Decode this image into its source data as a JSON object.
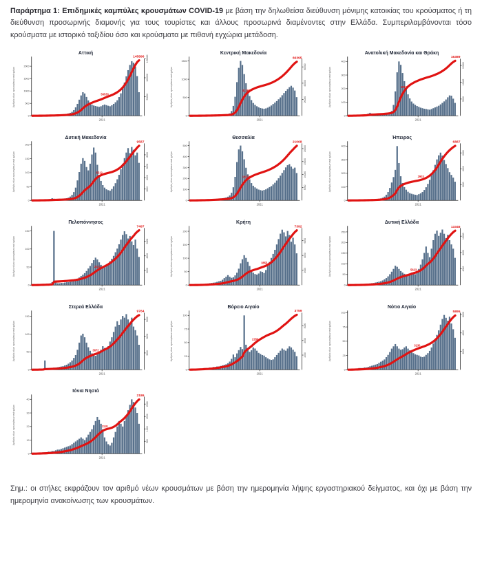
{
  "header": {
    "prefix": "Παράρτημα 1:",
    "bold_title": "Επιδημικές καμπύλες κρουσμάτων COVID-19",
    "body": "με βάση την δηλωθείσα διεύθυνση μόνιμης κατοικίας του κρούσματος ή τη διεύθυνση προσωρινής διαμονής για τους τουρίστες και άλλους προσωρινά διαμένοντες στην Ελλάδα. Συμπεριλαμβάνονται τόσο κρούσματα με ιστορικό ταξιδίου όσο και κρούσματα με πιθανή εγχώρια μετάδοση."
  },
  "footnote": "Σημ.:  οι στήλες εκφράζουν τον αριθμό νέων κρουσμάτων με βάση την ημερομηνία λήψης εργαστηριακού δείγματος, και όχι με βάση την ημερομηνία ανακοίνωσης των κρουσμάτων.",
  "meta": {
    "ylabel": "Αριθμός νέων κρουσμάτων ανά ημέρα",
    "colors": {
      "bar": "#57708b",
      "curve": "#e01312",
      "axis": "#2b2b2b",
      "title": "#1c2333",
      "tick_text": "#4a4a4a"
    },
    "rows": [
      [
        0,
        1,
        2
      ],
      [
        3,
        4,
        5
      ],
      [
        6,
        7,
        8
      ],
      [
        9,
        10,
        11
      ],
      [
        12
      ]
    ]
  },
  "chart_data": [
    {
      "type": "bar+line",
      "title": "Αττική",
      "xtick": "2021",
      "xtick_frac": 0.65,
      "left_ticks": [
        0,
        500,
        1000,
        1500,
        2000
      ],
      "left_max": 2300,
      "right_ticks": [
        50000,
        100000,
        150000
      ],
      "right_max": 150000,
      "total_label": "145896",
      "mid_label": "56530",
      "mid_frac": 0.66,
      "daily_bars": [
        8,
        9,
        10,
        11,
        12,
        13,
        14,
        15,
        16,
        18,
        20,
        22,
        25,
        28,
        32,
        36,
        42,
        50,
        60,
        75,
        95,
        120,
        160,
        230,
        340,
        480,
        650,
        820,
        950,
        900,
        760,
        620,
        510,
        450,
        415,
        395,
        375,
        360,
        385,
        425,
        455,
        430,
        405,
        385,
        425,
        480,
        545,
        625,
        755,
        905,
        1100,
        1340,
        1590,
        1840,
        2050,
        2200,
        2140,
        1980,
        1600,
        950
      ]
    },
    {
      "type": "bar+line",
      "title": "Κεντρική Μακεδονία",
      "xtick": "2021",
      "xtick_frac": 0.65,
      "left_ticks": [
        0,
        500,
        1000,
        1500
      ],
      "left_max": 1560,
      "right_ticks": [
        20000,
        40000,
        60000
      ],
      "right_max": 70000,
      "total_label": "66395",
      "mid_label": "41260",
      "mid_frac": 0.52,
      "daily_bars": [
        4,
        5,
        5,
        6,
        6,
        7,
        8,
        8,
        9,
        10,
        11,
        12,
        13,
        14,
        15,
        16,
        18,
        20,
        23,
        26,
        30,
        42,
        65,
        130,
        270,
        520,
        920,
        1310,
        1500,
        1390,
        1140,
        890,
        690,
        540,
        430,
        350,
        300,
        262,
        232,
        212,
        200,
        192,
        202,
        222,
        252,
        282,
        322,
        362,
        402,
        452,
        502,
        562,
        622,
        682,
        732,
        782,
        820,
        770,
        690,
        510
      ]
    },
    {
      "type": "bar+line",
      "title": "Ανατολική Μακεδονία και Θράκη",
      "xtick": "2021",
      "xtick_frac": 0.65,
      "left_ticks": [
        0,
        100,
        200,
        300,
        400
      ],
      "left_max": 420,
      "right_ticks": [
        5000,
        10000,
        15000
      ],
      "right_max": 17000,
      "total_label": "16389",
      "mid_label": "10125",
      "mid_frac": 0.52,
      "daily_bars": [
        2,
        2,
        3,
        3,
        3,
        4,
        4,
        5,
        5,
        6,
        8,
        16,
        22,
        17,
        10,
        8,
        8,
        9,
        10,
        10,
        12,
        14,
        17,
        22,
        35,
        80,
        180,
        320,
        400,
        375,
        315,
        255,
        200,
        158,
        128,
        105,
        90,
        80,
        72,
        66,
        60,
        56,
        52,
        50,
        47,
        45,
        50,
        56,
        62,
        68,
        74,
        84,
        95,
        106,
        120,
        136,
        150,
        148,
        126,
        95
      ]
    },
    {
      "type": "bar+line",
      "title": "Δυτική Μακεδονία",
      "xtick": "2021",
      "xtick_frac": 0.65,
      "left_ticks": [
        0,
        50,
        100,
        150,
        200
      ],
      "left_max": 205,
      "right_ticks": [
        2000,
        4000,
        6000,
        8000
      ],
      "right_max": 10000,
      "total_label": "9587",
      "mid_label": "5512",
      "mid_frac": 0.62,
      "daily_bars": [
        1,
        1,
        1,
        2,
        2,
        2,
        3,
        3,
        3,
        4,
        5,
        8,
        6,
        4,
        4,
        5,
        5,
        6,
        7,
        8,
        10,
        14,
        20,
        30,
        46,
        72,
        102,
        132,
        152,
        142,
        120,
        108,
        132,
        165,
        190,
        172,
        128,
        92,
        70,
        55,
        46,
        40,
        37,
        35,
        41,
        51,
        62,
        76,
        92,
        112,
        132,
        152,
        172,
        188,
        170,
        192,
        182,
        162,
        172,
        135
      ]
    },
    {
      "type": "bar+line",
      "title": "Θεσσαλία",
      "xtick": "2021",
      "xtick_frac": 0.65,
      "left_ticks": [
        0,
        100,
        200,
        300,
        400,
        500
      ],
      "left_max": 520,
      "right_ticks": [
        5000,
        10000,
        15000,
        20000
      ],
      "right_max": 22000,
      "total_label": "21068",
      "mid_label": "12671",
      "mid_frac": 0.52,
      "daily_bars": [
        2,
        3,
        3,
        4,
        4,
        5,
        5,
        6,
        6,
        7,
        8,
        10,
        12,
        13,
        14,
        15,
        16,
        18,
        20,
        23,
        27,
        34,
        45,
        70,
        120,
        215,
        350,
        465,
        500,
        448,
        375,
        298,
        238,
        192,
        158,
        134,
        119,
        108,
        99,
        94,
        90,
        95,
        101,
        111,
        121,
        131,
        146,
        161,
        181,
        202,
        226,
        251,
        276,
        301,
        321,
        331,
        309,
        289,
        299,
        250
      ]
    },
    {
      "type": "bar+line",
      "title": "Ήπειρος",
      "xtick": "2021",
      "xtick_frac": 0.65,
      "left_ticks": [
        0,
        100,
        200,
        300,
        400
      ],
      "left_max": 420,
      "right_ticks": [
        2000,
        4000,
        6000
      ],
      "right_max": 7200,
      "total_label": "6887",
      "mid_label": "2903",
      "mid_frac": 0.66,
      "daily_bars": [
        1,
        1,
        1,
        2,
        2,
        2,
        3,
        3,
        3,
        4,
        4,
        5,
        6,
        6,
        7,
        8,
        10,
        12,
        15,
        20,
        28,
        42,
        62,
        92,
        132,
        172,
        225,
        400,
        275,
        178,
        128,
        98,
        79,
        64,
        54,
        49,
        45,
        42,
        40,
        46,
        52,
        62,
        77,
        97,
        122,
        152,
        187,
        222,
        262,
        302,
        332,
        352,
        330,
        298,
        268,
        238,
        208,
        188,
        168,
        138
      ]
    },
    {
      "type": "bar+line",
      "title": "Πελοπόννησος",
      "xtick": "2021",
      "xtick_frac": 0.65,
      "left_ticks": [
        0,
        50,
        100,
        150
      ],
      "left_max": 158,
      "right_ticks": [
        2000,
        4000,
        6000
      ],
      "right_max": 7800,
      "total_label": "7497",
      "mid_label": "2431",
      "mid_frac": 0.6,
      "daily_bars": [
        1,
        1,
        2,
        2,
        2,
        3,
        3,
        3,
        4,
        4,
        5,
        8,
        150,
        7,
        5,
        5,
        6,
        6,
        7,
        8,
        8,
        9,
        10,
        12,
        14,
        17,
        21,
        25,
        29,
        33,
        39,
        46,
        53,
        61,
        69,
        76,
        71,
        63,
        56,
        51,
        49,
        53,
        59,
        66,
        73,
        81,
        91,
        101,
        113,
        126,
        139,
        149,
        141,
        129,
        136,
        121,
        111,
        126,
        101,
        78
      ]
    },
    {
      "type": "bar+line",
      "title": "Κρήτη",
      "xtick": "2021",
      "xtick_frac": 0.65,
      "left_ticks": [
        0,
        50,
        100,
        150,
        200
      ],
      "left_max": 212,
      "right_ticks": [
        2000,
        4000,
        6000
      ],
      "right_max": 7700,
      "total_label": "7392",
      "mid_label": "3855",
      "mid_frac": 0.68,
      "daily_bars": [
        1,
        1,
        2,
        2,
        2,
        3,
        3,
        4,
        4,
        5,
        6,
        7,
        8,
        9,
        10,
        12,
        14,
        16,
        20,
        26,
        31,
        37,
        31,
        27,
        29,
        36,
        46,
        61,
        81,
        96,
        111,
        101,
        86,
        71,
        56,
        46,
        41,
        39,
        43,
        51,
        49,
        45,
        56,
        71,
        86,
        101,
        116,
        131,
        151,
        171,
        191,
        206,
        196,
        181,
        201,
        186,
        161,
        176,
        151,
        118
      ]
    },
    {
      "type": "bar+line",
      "title": "Δυτική Ελλάδα",
      "xtick": "2021",
      "xtick_frac": 0.65,
      "left_ticks": [
        0,
        50,
        100,
        150,
        200,
        250
      ],
      "left_max": 268,
      "right_ticks": [
        4000,
        8000,
        12000
      ],
      "right_max": 14000,
      "total_label": "13346",
      "mid_label": "5623",
      "mid_frac": 0.6,
      "daily_bars": [
        1,
        1,
        2,
        2,
        2,
        3,
        3,
        4,
        4,
        5,
        6,
        7,
        8,
        9,
        10,
        12,
        14,
        16,
        18,
        22,
        27,
        33,
        41,
        51,
        63,
        76,
        91,
        86,
        76,
        66,
        59,
        53,
        49,
        46,
        51,
        59,
        56,
        51,
        61,
        76,
        96,
        121,
        151,
        181,
        151,
        131,
        171,
        211,
        241,
        256,
        231,
        246,
        261,
        241,
        221,
        236,
        211,
        191,
        171,
        128
      ]
    },
    {
      "type": "bar+line",
      "title": "Στερεά Ελλάδα",
      "xtick": "2021",
      "xtick_frac": 0.65,
      "left_ticks": [
        0,
        50,
        100,
        150
      ],
      "left_max": 160,
      "right_ticks": [
        3000,
        6000,
        9000
      ],
      "right_max": 10200,
      "total_label": "9764",
      "mid_label": "3672",
      "mid_frac": 0.58,
      "daily_bars": [
        1,
        1,
        1,
        2,
        2,
        3,
        3,
        26,
        4,
        4,
        5,
        5,
        6,
        6,
        7,
        8,
        9,
        10,
        12,
        14,
        17,
        21,
        26,
        33,
        41,
        56,
        76,
        96,
        101,
        91,
        76,
        63,
        53,
        46,
        41,
        39,
        43,
        49,
        56,
        66,
        61,
        56,
        66,
        79,
        91,
        106,
        121,
        136,
        126,
        141,
        151,
        146,
        156,
        141,
        131,
        146,
        121,
        111,
        96,
        70
      ]
    },
    {
      "type": "bar+line",
      "title": "Βόρειο Αιγαίο",
      "xtick": "2021",
      "xtick_frac": 0.65,
      "left_ticks": [
        0,
        25,
        50,
        75,
        100
      ],
      "left_max": 105,
      "right_ticks": [
        1000,
        2000,
        3000
      ],
      "right_max": 3900,
      "total_label": "3759",
      "mid_label": "2280",
      "mid_frac": 0.6,
      "daily_bars": [
        1,
        1,
        1,
        1,
        2,
        2,
        2,
        2,
        3,
        3,
        3,
        4,
        4,
        5,
        5,
        6,
        6,
        7,
        8,
        9,
        10,
        12,
        15,
        20,
        28,
        23,
        30,
        36,
        42,
        38,
        100,
        46,
        39,
        33,
        36,
        41,
        39,
        35,
        31,
        29,
        27,
        26,
        23,
        21,
        19,
        18,
        19,
        23,
        27,
        31,
        35,
        39,
        37,
        35,
        39,
        43,
        41,
        37,
        33,
        25
      ]
    },
    {
      "type": "bar+line",
      "title": "Νότιο Αιγαίο",
      "xtick": "2021",
      "xtick_frac": 0.65,
      "left_ticks": [
        0,
        25,
        50,
        75,
        100
      ],
      "left_max": 100,
      "right_ticks": [
        2000,
        4000,
        6000
      ],
      "right_max": 6200,
      "total_label": "5895",
      "mid_label": "3130",
      "mid_frac": 0.64,
      "daily_bars": [
        1,
        1,
        1,
        2,
        2,
        2,
        3,
        3,
        3,
        4,
        4,
        5,
        6,
        7,
        8,
        9,
        10,
        12,
        14,
        16,
        18,
        22,
        26,
        31,
        37,
        41,
        45,
        41,
        37,
        35,
        36,
        39,
        41,
        37,
        34,
        31,
        29,
        27,
        26,
        25,
        23,
        22,
        23,
        26,
        29,
        33,
        39,
        46,
        53,
        61,
        69,
        79,
        89,
        96,
        91,
        86,
        93,
        81,
        71,
        56
      ]
    },
    {
      "type": "bar+line",
      "title": "Ιόνια Νησιά",
      "xtick": "2021",
      "xtick_frac": 0.65,
      "left_ticks": [
        0,
        10,
        20,
        30,
        40
      ],
      "left_max": 42,
      "right_ticks": [
        500,
        1000,
        1500,
        2000
      ],
      "right_max": 2300,
      "total_label": "2186",
      "mid_label": "1118",
      "mid_frac": 0.66,
      "daily_bars": [
        0.3,
        0.3,
        0.5,
        0.5,
        0.8,
        0.8,
        1,
        1,
        1,
        1.5,
        1.5,
        2,
        2,
        2.5,
        3,
        3,
        3.5,
        4,
        4.5,
        5,
        5.5,
        6,
        7,
        8,
        9,
        10,
        11,
        12,
        11,
        10,
        12,
        14,
        16,
        18,
        21,
        24,
        27,
        25,
        22,
        18,
        12,
        9,
        7,
        6,
        8,
        12,
        16,
        20,
        24,
        22,
        20,
        24,
        28,
        32,
        36,
        40,
        38,
        34,
        30,
        22
      ]
    }
  ]
}
